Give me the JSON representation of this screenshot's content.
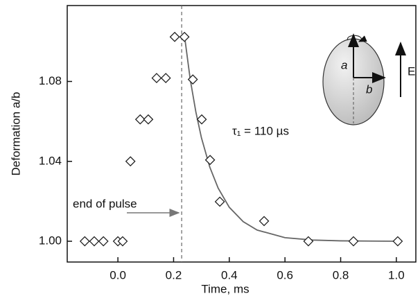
{
  "chart_data": {
    "type": "scatter",
    "x_label": "Time, ms",
    "y_label": "Deformation a/b",
    "x": [
      -0.119,
      -0.085,
      -0.052,
      0.0,
      0.017,
      0.045,
      0.08,
      0.109,
      0.139,
      0.172,
      0.204,
      0.239,
      0.269,
      0.301,
      0.331,
      0.366,
      0.525,
      0.684,
      0.846,
      1.005
    ],
    "values": [
      1.0,
      1.0,
      1.0,
      1.0,
      1.0,
      1.04,
      1.061,
      1.061,
      1.0817,
      1.0817,
      1.1023,
      1.1023,
      1.081,
      1.061,
      1.0407,
      1.0198,
      1.0101,
      1.0,
      1.0,
      1.0
    ],
    "color": "#222222",
    "fit": {
      "x": [
        0.24,
        0.26,
        0.28,
        0.3,
        0.33,
        0.36,
        0.4,
        0.45,
        0.5,
        0.6,
        0.7,
        0.8,
        0.9,
        1.0
      ],
      "values": [
        1.1019,
        1.0808,
        1.0647,
        1.0518,
        1.0371,
        1.0266,
        1.017,
        1.0098,
        1.0056,
        1.0018,
        1.0006,
        1.0002,
        1.0001,
        1.0
      ],
      "color": "#666666"
    },
    "pulse_end": 0.229,
    "xlim": [
      -0.182,
      1.07
    ],
    "ylim": [
      0.9896,
      1.118
    ],
    "xticks": [
      {
        "value": 0,
        "label": "0.0"
      },
      0.2,
      0.4,
      0.6,
      0.8,
      {
        "value": 1,
        "label": "1.0"
      }
    ],
    "yticks": [
      {
        "value": 1,
        "label": "1.00"
      },
      1.04,
      1.08
    ],
    "annotations": [
      "end of pulse",
      "τ₁ = 110 µs"
    ],
    "inset": {
      "a": "a",
      "b": "b",
      "field": "E"
    }
  }
}
